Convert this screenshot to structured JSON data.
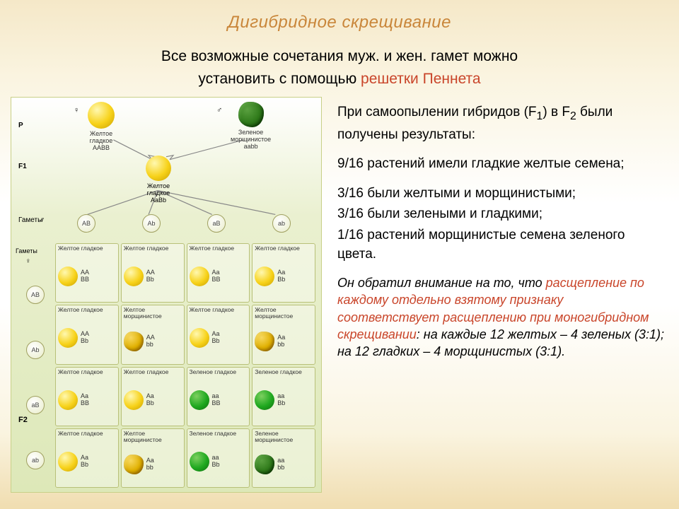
{
  "title": {
    "text": "Дигибридное скрещивание",
    "color": "#c9863a"
  },
  "subtitle": {
    "line1": "Все возможные сочетания муж. и жен. гамет можно",
    "line2_a": "установить с помощью ",
    "line2_b": "решетки Пеннета",
    "color_dark": "#222222",
    "color_accent": "#c9452a"
  },
  "rightText": {
    "intro_a": "При самоопылении гибридов (F",
    "intro_sub1": "1",
    "intro_b": ") в F",
    "intro_sub2": "2",
    "intro_c": " были получены результаты:",
    "r1": "9/16 растений имели гладкие желтые семена;",
    "r2": "3/16 были желтыми и морщинистыми;",
    "r3": "3/16 были зелеными и гладкими;",
    "r4": "1/16 растений морщинистые семена зеленого цвета.",
    "concl_a": "Он обратил внимание на то, что ",
    "concl_b": "расщепление по каждому отдельно взятому признаку соответствует расщеплению при моногибридном скрещивании",
    "concl_c": ": на каждые 12 желтых – 4 зеленых (3:1); на 12 гладких – 4 морщинистых (3:1).",
    "color_dark": "#222222",
    "color_italic": "#c9452a"
  },
  "diagram": {
    "labels": {
      "P": "P",
      "F1": "F1",
      "F2": "F2",
      "gametes": "Гаметы",
      "side": "Гаметы"
    },
    "parent_female": {
      "phen1": "Желтое",
      "phen2": "гладкое",
      "geno": "AABB"
    },
    "parent_male": {
      "phen1": "Зеленое",
      "phen2": "морщинистое",
      "geno": "aabb"
    },
    "f1": {
      "phen1": "Желтое",
      "phen2": "гладкое",
      "geno": "AaBb"
    },
    "gametes_top": [
      "AB",
      "Ab",
      "aB",
      "ab"
    ],
    "gametes_side": [
      "AB",
      "Ab",
      "aB",
      "ab"
    ],
    "cells": [
      {
        "phen": "Желтое гладкое",
        "geno": "AA\nBB",
        "seed": "yellow-smooth"
      },
      {
        "phen": "Желтое гладкое",
        "geno": "AA\nBb",
        "seed": "yellow-smooth"
      },
      {
        "phen": "Желтое гладкое",
        "geno": "Aa\nBB",
        "seed": "yellow-smooth"
      },
      {
        "phen": "Желтое гладкое",
        "geno": "Aa\nBb",
        "seed": "yellow-smooth"
      },
      {
        "phen": "Желтое гладкое",
        "geno": "AA\nBb",
        "seed": "yellow-smooth"
      },
      {
        "phen": "Желтое морщинистое",
        "geno": "AA\nbb",
        "seed": "yellow-wrinkled"
      },
      {
        "phen": "Желтое гладкое",
        "geno": "Aa\nBb",
        "seed": "yellow-smooth"
      },
      {
        "phen": "Желтое морщинистое",
        "geno": "Aa\nbb",
        "seed": "yellow-wrinkled"
      },
      {
        "phen": "Желтое гладкое",
        "geno": "Aa\nBB",
        "seed": "yellow-smooth"
      },
      {
        "phen": "Желтое гладкое",
        "geno": "Aa\nBb",
        "seed": "yellow-smooth"
      },
      {
        "phen": "Зеленое гладкое",
        "geno": "aa\nBB",
        "seed": "green-smooth"
      },
      {
        "phen": "Зеленое гладкое",
        "geno": "aa\nBb",
        "seed": "green-smooth"
      },
      {
        "phen": "Желтое гладкое",
        "geno": "Aa\nBb",
        "seed": "yellow-smooth"
      },
      {
        "phen": "Желтое морщинистое",
        "geno": "Aa\nbb",
        "seed": "yellow-wrinkled"
      },
      {
        "phen": "Зеленое гладкое",
        "geno": "aa\nBb",
        "seed": "green-smooth"
      },
      {
        "phen": "Зеленое морщинистое",
        "geno": "aa\nbb",
        "seed": "green-wrinkled"
      }
    ]
  },
  "colors": {
    "yellow_smooth": "#f7d21a",
    "green_smooth": "#1fa81f",
    "yellow_wrinkled": "#e0b000",
    "green_wrinkled": "#2f7a1a",
    "bg_top": "#f5e8c8",
    "bg_mid": "#ffffff",
    "diagram_bg": "#dde8b8",
    "cell_border": "#b8c078"
  },
  "typography": {
    "title_size": 24,
    "body_size": 19,
    "diagram_label_size": 10
  }
}
